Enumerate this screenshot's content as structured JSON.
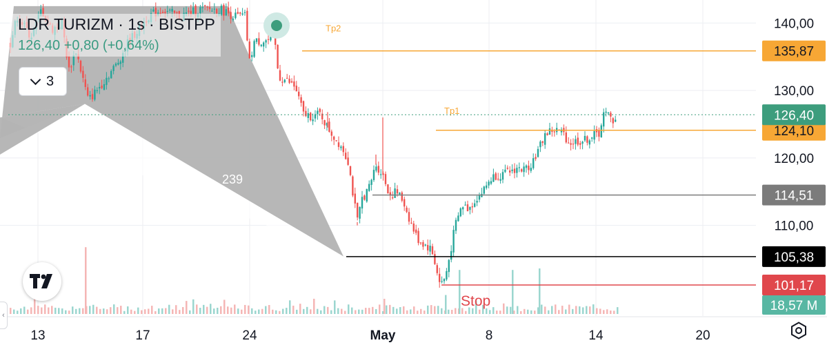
{
  "header": {
    "symbol": "LDR TURIZM · 1s · BISTPP",
    "last": "126,40",
    "change": "+0,80",
    "change_pct": "(+0,64%)",
    "studies_count": "3"
  },
  "colors": {
    "up": "#26a69a",
    "down": "#ef5350",
    "target": "#f7a735",
    "support": "#7b7b7b",
    "entry": "#000000",
    "stop": "#e0474c",
    "last_price": "#3d9d7d",
    "pattern_fill": "#b3b3b3"
  },
  "icons": {
    "logo": "tradingview-logo-icon",
    "settings": "gear-hexagon-icon",
    "studies": "chevron-down-icon",
    "marker": "event-dot-icon"
  },
  "annotations": {
    "tp2": "Tp2",
    "tp1": "Tp1",
    "stop": "Stop",
    "pattern_ratio": "239"
  },
  "chart_data": {
    "type": "candlestick",
    "title": "LDR TURIZM · 1s · BISTPP",
    "y_range": [
      98,
      143
    ],
    "y_ticks": [
      {
        "value": 140,
        "label": "140,00"
      },
      {
        "value": 130,
        "label": "130,00"
      },
      {
        "value": 120,
        "label": "120,00"
      },
      {
        "value": 110,
        "label": "110,00"
      }
    ],
    "x_ticks": [
      "13",
      "17",
      "24",
      "May",
      "8",
      "14",
      "20"
    ],
    "levels": [
      {
        "name": "Tp2",
        "value": 135.87,
        "label": "135,87",
        "color": "#f7a735"
      },
      {
        "name": "Tp1",
        "value": 124.1,
        "label": "124,10",
        "color": "#f7a735"
      },
      {
        "name": "",
        "value": 114.51,
        "label": "114,51",
        "color": "#7b7b7b"
      },
      {
        "name": "",
        "value": 105.38,
        "label": "105,38",
        "color": "#000000"
      },
      {
        "name": "Stop",
        "value": 101.17,
        "label": "101,17",
        "color": "#e0474c"
      }
    ],
    "last_price": {
      "value": 126.4,
      "label": "126,40"
    },
    "volume_label": "18,57 M",
    "harmonic_pattern": {
      "points": [
        [
          123,
          128
        ],
        [
          136,
          128.5
        ],
        [
          498,
          105.4
        ],
        [
          362,
          135
        ]
      ],
      "label": "239"
    },
    "price_path": [
      [
        15,
        137
      ],
      [
        25,
        141
      ],
      [
        45,
        138
      ],
      [
        60,
        142
      ],
      [
        75,
        139
      ],
      [
        90,
        140
      ],
      [
        100,
        133
      ],
      [
        110,
        136
      ],
      [
        122,
        131
      ],
      [
        128,
        128.5
      ],
      [
        140,
        130
      ],
      [
        155,
        132
      ],
      [
        170,
        134
      ],
      [
        185,
        137
      ],
      [
        200,
        139
      ],
      [
        215,
        141
      ],
      [
        235,
        142
      ],
      [
        260,
        141
      ],
      [
        290,
        142
      ],
      [
        320,
        142
      ],
      [
        340,
        141
      ],
      [
        355,
        141
      ],
      [
        362,
        134
      ],
      [
        368,
        137.2
      ],
      [
        385,
        137.4
      ],
      [
        398,
        137.6
      ],
      [
        404,
        132
      ],
      [
        415,
        131.5
      ],
      [
        428,
        130.5
      ],
      [
        440,
        126.5
      ],
      [
        452,
        126.2
      ],
      [
        465,
        126.5
      ],
      [
        475,
        124.5
      ],
      [
        485,
        123
      ],
      [
        495,
        121.8
      ],
      [
        505,
        119.5
      ],
      [
        512,
        114.5
      ],
      [
        518,
        110.5
      ],
      [
        525,
        114
      ],
      [
        535,
        115.5
      ],
      [
        545,
        119
      ],
      [
        555,
        117.5
      ],
      [
        565,
        114.5
      ],
      [
        575,
        115
      ],
      [
        585,
        113.5
      ],
      [
        595,
        110.5
      ],
      [
        605,
        108
      ],
      [
        615,
        107.2
      ],
      [
        625,
        106.5
      ],
      [
        632,
        104
      ],
      [
        637,
        101.5
      ],
      [
        645,
        102
      ],
      [
        652,
        105.5
      ],
      [
        660,
        110
      ],
      [
        670,
        113
      ],
      [
        680,
        112.5
      ],
      [
        690,
        114
      ],
      [
        700,
        115
      ],
      [
        710,
        116.8
      ],
      [
        720,
        117.5
      ],
      [
        730,
        117.5
      ],
      [
        740,
        118
      ],
      [
        750,
        118.5
      ],
      [
        760,
        118.2
      ],
      [
        770,
        119.2
      ],
      [
        780,
        121
      ],
      [
        790,
        123.5
      ],
      [
        800,
        124.1
      ],
      [
        810,
        124
      ],
      [
        818,
        123.5
      ],
      [
        825,
        122.2
      ],
      [
        835,
        122.5
      ],
      [
        845,
        122.5
      ],
      [
        855,
        123
      ],
      [
        862,
        123.4
      ],
      [
        868,
        123.5
      ],
      [
        875,
        126.5
      ],
      [
        882,
        126.3
      ],
      [
        888,
        125.5
      ],
      [
        895,
        126.4
      ]
    ],
    "spikes": [
      [
        555,
        126
      ],
      [
        545,
        120.5
      ],
      [
        518,
        110
      ],
      [
        475,
        126.8
      ]
    ],
    "volume_spikes": [
      [
        123,
        0.88
      ],
      [
        556,
        0.2
      ],
      [
        665,
        0.58
      ],
      [
        742,
        0.58
      ],
      [
        781,
        0.6
      ],
      [
        645,
        0.25
      ]
    ]
  }
}
